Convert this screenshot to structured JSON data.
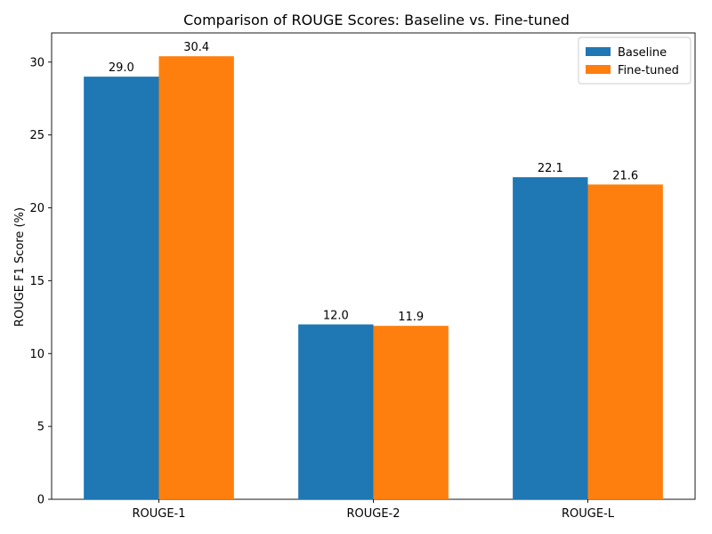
{
  "chart_data": {
    "type": "bar",
    "title": "Comparison of ROUGE Scores: Baseline vs. Fine-tuned",
    "xlabel": "",
    "ylabel": "ROUGE F1 Score (%)",
    "categories": [
      "ROUGE-1",
      "ROUGE-2",
      "ROUGE-L"
    ],
    "series": [
      {
        "name": "Baseline",
        "values": [
          29.0,
          12.0,
          22.1
        ],
        "color": "#1f77b4"
      },
      {
        "name": "Fine-tuned",
        "values": [
          30.4,
          11.9,
          21.6
        ],
        "color": "#ff7f0e"
      }
    ],
    "ylim": [
      0,
      32
    ],
    "yticks": [
      0,
      5,
      10,
      15,
      20,
      25,
      30
    ],
    "grid": false,
    "legend_position": "top-right"
  }
}
